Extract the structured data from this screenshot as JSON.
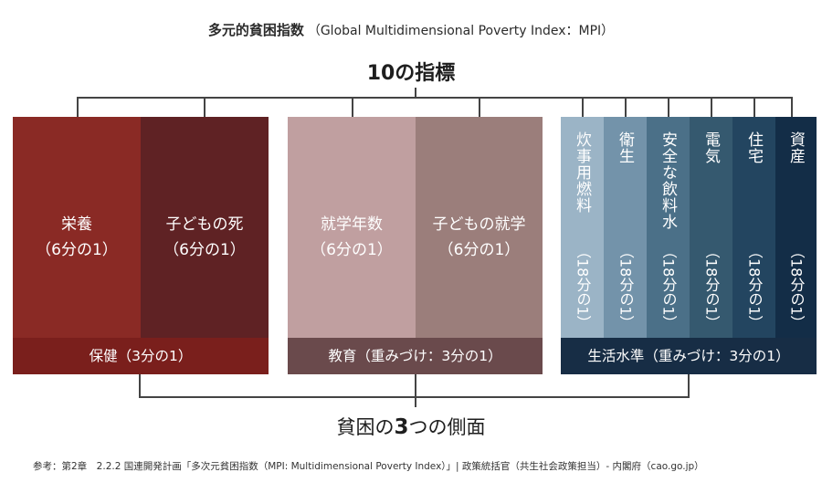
{
  "header": {
    "title_main": "多元的貧困指数",
    "title_sub": "（Global Multidimensional Poverty Index：MPI）",
    "indicators_label": "10の指標"
  },
  "dimensions": {
    "health": {
      "color": "#7a1f1c",
      "bar_label": "保健（3分の1）",
      "indicators": [
        {
          "name": "栄養",
          "weight": "（6分の1）",
          "color": "#8a2a25"
        },
        {
          "name": "子どもの死",
          "weight": "（6分の1）",
          "color": "#5f2224"
        }
      ]
    },
    "education": {
      "color": "#6a4a4c",
      "bar_label": "教育（重みづけ：3分の1）",
      "indicators": [
        {
          "name": "就学年数",
          "weight": "（6分の1）",
          "color": "#c09fa0"
        },
        {
          "name": "子どもの就学",
          "weight": "（6分の1）",
          "color": "#9b7e7b"
        }
      ]
    },
    "living": {
      "color": "#172d45",
      "bar_label": "生活水準（重みづけ：3分の1）",
      "indicators": [
        {
          "name": "炊事用燃料",
          "weight": "（18分の1）",
          "color": "#9bb4c6"
        },
        {
          "name": "衛生",
          "weight": "（18分の1）",
          "color": "#7393aa"
        },
        {
          "name": "安全な飲料水",
          "weight": "（18分の1）",
          "color": "#4b7088"
        },
        {
          "name": "電気",
          "weight": "（18分の1）",
          "color": "#35596f"
        },
        {
          "name": "住宅",
          "weight": "（18分の1）",
          "color": "#234560"
        },
        {
          "name": "資産",
          "weight": "（18分の1）",
          "color": "#132d47"
        }
      ]
    }
  },
  "footer": {
    "dimensions_pre": "貧困の",
    "dimensions_num": "3",
    "dimensions_post": "つの側面",
    "source": "参考：第2章　2.2.2 国連開発計画「多次元貧困指数（MPI: Multidimensional Poverty Index）」| 政策統括官（共生社会政策担当）- 内閣府（cao.go.jp）"
  }
}
